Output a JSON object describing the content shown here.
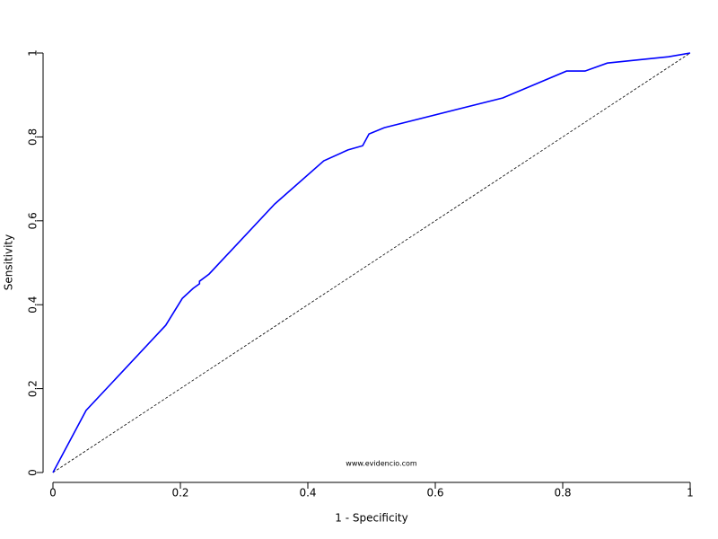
{
  "chart_data": {
    "type": "line",
    "xlabel": "1 - Specificity",
    "ylabel": "Sensitivity",
    "annotation": "www.evidencio.com",
    "x": [
      0,
      0.052,
      0.177,
      0.203,
      0.22,
      0.23,
      0.23,
      0.245,
      0.348,
      0.425,
      0.463,
      0.486,
      0.496,
      0.52,
      0.706,
      0.806,
      0.835,
      0.87,
      0.966,
      1
    ],
    "values": [
      0,
      0.148,
      0.351,
      0.415,
      0.439,
      0.45,
      0.456,
      0.473,
      0.64,
      0.743,
      0.769,
      0.779,
      0.807,
      0.822,
      0.893,
      0.957,
      0.957,
      0.976,
      0.991,
      1
    ],
    "color": "#0000ff",
    "xlim": [
      0,
      1
    ],
    "ylim": [
      0,
      1
    ],
    "xticks": [
      0,
      0.2,
      0.4,
      0.6,
      0.8,
      1
    ],
    "yticks": [
      0,
      0.2,
      0.4,
      0.6,
      0.8,
      1
    ],
    "diagonal": true
  }
}
